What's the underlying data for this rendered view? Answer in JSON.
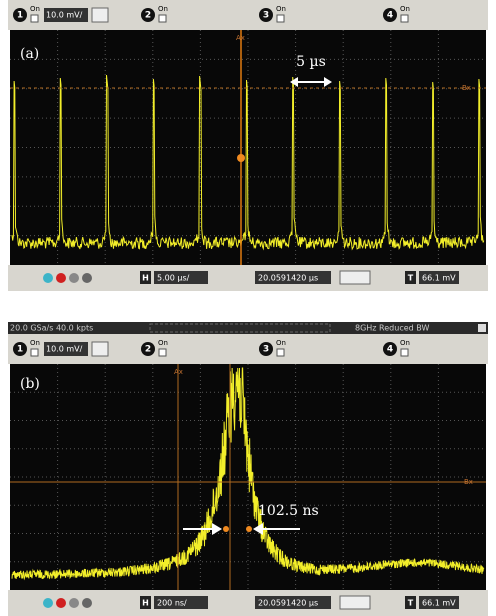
{
  "panels": [
    {
      "label": "(a)",
      "channels": [
        {
          "number": "1",
          "state": "On",
          "scale": "10.0 mV/"
        },
        {
          "number": "2",
          "state": "On"
        },
        {
          "number": "3",
          "state": "On"
        },
        {
          "number": "4",
          "state": "On"
        }
      ],
      "annotation": "5 µs",
      "markers": {
        "ax": "Ax",
        "bx": "Bx"
      },
      "h_button": "H",
      "timebase": "5.00 µs/",
      "delay": "20.0591420 µs",
      "t_button": "T",
      "trigger_level": "66.1 mV"
    },
    {
      "label": "(b)",
      "status": [
        "20.0 GSa/s  40.0 kpts",
        "8GHz Reduced BW"
      ],
      "channels": [
        {
          "number": "1",
          "state": "On",
          "scale": "10.0 mV/"
        },
        {
          "number": "2",
          "state": "On"
        },
        {
          "number": "3",
          "state": "On"
        },
        {
          "number": "4",
          "state": "On"
        }
      ],
      "annotation": "102.5 ns",
      "markers": {
        "ax": "Ax",
        "bx": "Bx"
      },
      "h_button": "H",
      "timebase": "200 ns/",
      "delay": "20.0591420 µs",
      "t_button": "T",
      "trigger_level": "66.1 mV"
    }
  ]
}
